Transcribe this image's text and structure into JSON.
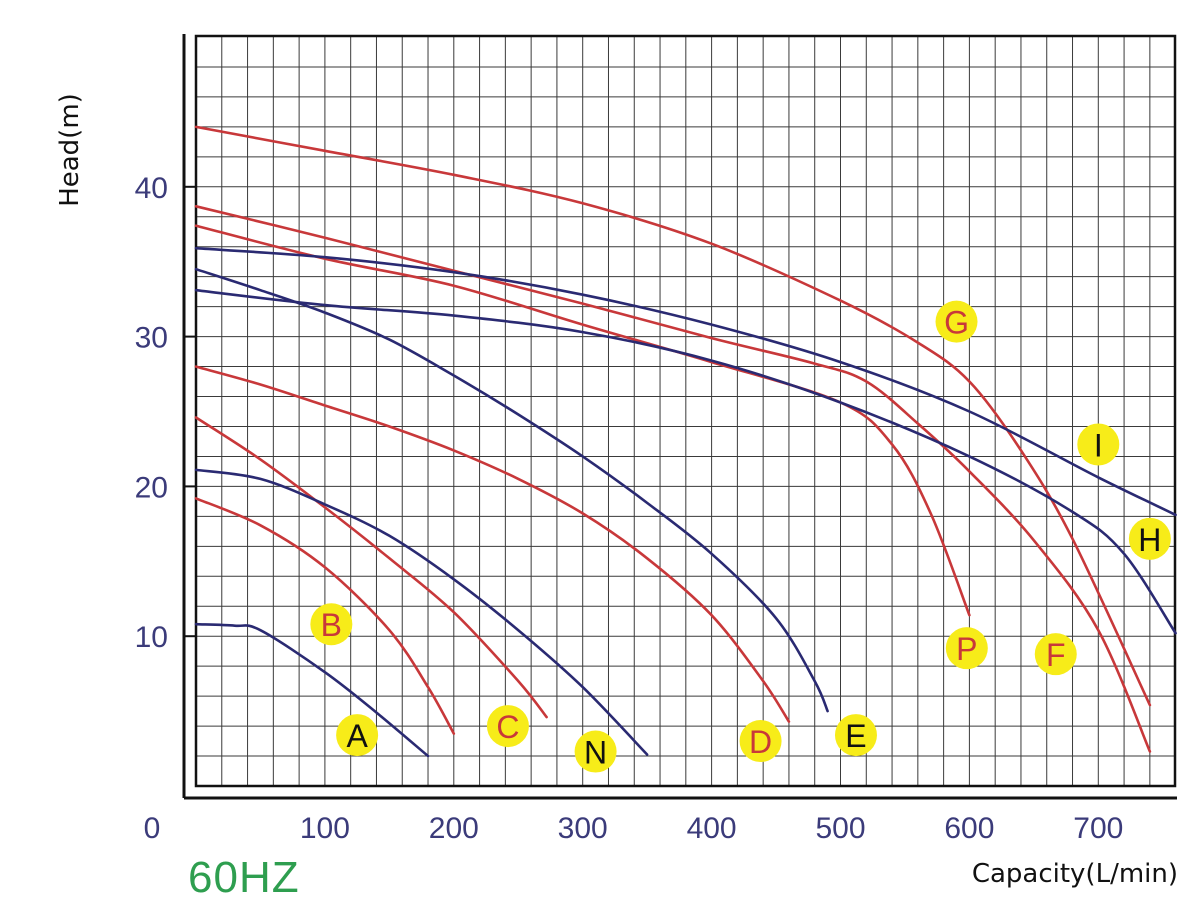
{
  "chart_data": {
    "type": "line",
    "xlabel": "Capacity(L/min)",
    "ylabel": "Head(m)",
    "frequency_label": "60HZ",
    "xlim": [
      0,
      760
    ],
    "ylim": [
      0,
      50
    ],
    "x_ticks": [
      "0",
      "100",
      "200",
      "300",
      "400",
      "500",
      "600",
      "700"
    ],
    "y_ticks": [
      "10",
      "20",
      "30",
      "40"
    ],
    "grid": true,
    "colors": {
      "red": "#c8383a",
      "blue": "#2a2a72",
      "badge": "#f7ec19",
      "grid": "#3a3a3a"
    },
    "series": [
      {
        "name": "A",
        "color": "blue",
        "label_pos": [
          125,
          3.4
        ],
        "label_color": "#111111",
        "points": [
          [
            0,
            10.8
          ],
          [
            30,
            10.7
          ],
          [
            50,
            10.4
          ],
          [
            100,
            7.6
          ],
          [
            140,
            4.9
          ],
          [
            180,
            2.0
          ]
        ]
      },
      {
        "name": "B",
        "color": "red",
        "label_pos": [
          105,
          10.8
        ],
        "label_color": "#c8383a",
        "points": [
          [
            0,
            19.2
          ],
          [
            50,
            17.4
          ],
          [
            100,
            14.6
          ],
          [
            150,
            10.4
          ],
          [
            180,
            6.6
          ],
          [
            200,
            3.5
          ]
        ]
      },
      {
        "name": "C",
        "color": "red",
        "label_pos": [
          242,
          4.0
        ],
        "label_color": "#c8383a",
        "points": [
          [
            0,
            24.6
          ],
          [
            50,
            21.8
          ],
          [
            100,
            18.6
          ],
          [
            150,
            15.2
          ],
          [
            200,
            11.6
          ],
          [
            250,
            7.0
          ],
          [
            272,
            4.6
          ]
        ]
      },
      {
        "name": "N",
        "color": "blue",
        "label_pos": [
          310,
          2.3
        ],
        "label_color": "#111111",
        "points": [
          [
            0,
            21.1
          ],
          [
            50,
            20.5
          ],
          [
            100,
            18.8
          ],
          [
            150,
            16.7
          ],
          [
            200,
            13.8
          ],
          [
            250,
            10.4
          ],
          [
            300,
            6.6
          ],
          [
            350,
            2.1
          ]
        ]
      },
      {
        "name": "D",
        "color": "red",
        "label_pos": [
          438,
          3.0
        ],
        "label_color": "#c8383a",
        "points": [
          [
            0,
            28.0
          ],
          [
            50,
            26.8
          ],
          [
            100,
            25.4
          ],
          [
            150,
            24.0
          ],
          [
            200,
            22.4
          ],
          [
            250,
            20.5
          ],
          [
            300,
            18.2
          ],
          [
            350,
            15.2
          ],
          [
            400,
            11.4
          ],
          [
            440,
            7.0
          ],
          [
            460,
            4.3
          ]
        ]
      },
      {
        "name": "E",
        "color": "blue",
        "label_pos": [
          512,
          3.4
        ],
        "label_color": "#111111",
        "points": [
          [
            0,
            34.5
          ],
          [
            50,
            33.1
          ],
          [
            100,
            31.6
          ],
          [
            150,
            29.8
          ],
          [
            200,
            27.4
          ],
          [
            250,
            24.8
          ],
          [
            300,
            22.0
          ],
          [
            350,
            18.9
          ],
          [
            400,
            15.5
          ],
          [
            450,
            11.2
          ],
          [
            480,
            7.0
          ],
          [
            490,
            5.0
          ]
        ]
      },
      {
        "name": "P",
        "color": "red",
        "label_pos": [
          598,
          9.2
        ],
        "label_color": "#c8383a",
        "points": [
          [
            0,
            37.4
          ],
          [
            100,
            35.2
          ],
          [
            200,
            33.4
          ],
          [
            300,
            30.8
          ],
          [
            400,
            28.3
          ],
          [
            500,
            25.6
          ],
          [
            540,
            22.8
          ],
          [
            570,
            18.2
          ],
          [
            600,
            11.4
          ]
        ]
      },
      {
        "name": "G",
        "color": "red",
        "label_pos": [
          590,
          31.0
        ],
        "label_color": "#c8383a",
        "points": [
          [
            0,
            44.0
          ],
          [
            100,
            42.4
          ],
          [
            200,
            40.8
          ],
          [
            300,
            38.9
          ],
          [
            400,
            36.2
          ],
          [
            500,
            32.4
          ],
          [
            560,
            29.6
          ],
          [
            600,
            27.0
          ],
          [
            640,
            22.4
          ],
          [
            680,
            16.5
          ],
          [
            740,
            5.4
          ]
        ]
      },
      {
        "name": "F",
        "color": "red",
        "label_pos": [
          667,
          8.8
        ],
        "label_color": "#c8383a",
        "points": [
          [
            0,
            38.7
          ],
          [
            100,
            36.6
          ],
          [
            200,
            34.4
          ],
          [
            300,
            32.2
          ],
          [
            400,
            29.9
          ],
          [
            480,
            28.2
          ],
          [
            520,
            27.0
          ],
          [
            560,
            24.2
          ],
          [
            600,
            21.0
          ],
          [
            650,
            16.4
          ],
          [
            700,
            10.4
          ],
          [
            740,
            2.3
          ]
        ]
      },
      {
        "name": "I",
        "color": "blue",
        "label_pos": [
          700,
          22.8
        ],
        "label_color": "#111111",
        "points": [
          [
            0,
            35.9
          ],
          [
            100,
            35.3
          ],
          [
            200,
            34.3
          ],
          [
            300,
            32.8
          ],
          [
            400,
            30.8
          ],
          [
            500,
            28.3
          ],
          [
            600,
            25.0
          ],
          [
            700,
            20.6
          ],
          [
            760,
            18.1
          ]
        ]
      },
      {
        "name": "H",
        "color": "blue",
        "label_pos": [
          740,
          16.5
        ],
        "label_color": "#111111",
        "points": [
          [
            0,
            33.1
          ],
          [
            100,
            32.1
          ],
          [
            200,
            31.4
          ],
          [
            300,
            30.3
          ],
          [
            400,
            28.4
          ],
          [
            500,
            25.6
          ],
          [
            600,
            22.0
          ],
          [
            680,
            18.3
          ],
          [
            720,
            15.5
          ],
          [
            760,
            10.2
          ]
        ]
      }
    ]
  }
}
